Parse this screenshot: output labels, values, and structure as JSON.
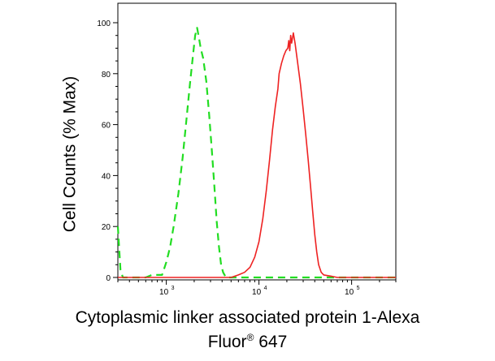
{
  "chart_data": {
    "type": "line",
    "ylabel": "Cell Counts (% Max)",
    "xlabel_line1": "Cytoplasmic linker associated protein 1-Alexa",
    "xlabel_line2": "Fluor",
    "xlabel_sup": "®",
    "xlabel_line2_tail": " 647",
    "x_scale": "log",
    "xlim": [
      300,
      300000
    ],
    "ylim": [
      0,
      100
    ],
    "y_ticks": [
      0,
      20,
      40,
      60,
      80,
      100
    ],
    "y_tick_labels": [
      "0",
      "20",
      "40",
      "60",
      "80",
      "100"
    ],
    "x_major_ticks": [
      1000,
      10000,
      100000
    ],
    "x_tick_labels": [
      {
        "base": "10",
        "exp": "3"
      },
      {
        "base": "10",
        "exp": "4"
      },
      {
        "base": "10",
        "exp": "5"
      }
    ],
    "grid": false,
    "legend": false,
    "series": [
      {
        "color": "#22dd22",
        "dash": "dashed",
        "points": [
          [
            300,
            20
          ],
          [
            320,
            3
          ],
          [
            340,
            0
          ],
          [
            600,
            0
          ],
          [
            700,
            1
          ],
          [
            800,
            1
          ],
          [
            900,
            1
          ],
          [
            1000,
            6
          ],
          [
            1100,
            12
          ],
          [
            1200,
            20
          ],
          [
            1350,
            33
          ],
          [
            1500,
            47
          ],
          [
            1650,
            62
          ],
          [
            1800,
            76
          ],
          [
            1950,
            88
          ],
          [
            2050,
            95
          ],
          [
            2150,
            98
          ],
          [
            2250,
            94
          ],
          [
            2350,
            90
          ],
          [
            2500,
            86
          ],
          [
            2700,
            77
          ],
          [
            2900,
            64
          ],
          [
            3100,
            50
          ],
          [
            3300,
            36
          ],
          [
            3500,
            22
          ],
          [
            3700,
            12
          ],
          [
            3900,
            5
          ],
          [
            4100,
            2
          ],
          [
            4400,
            0
          ],
          [
            300000,
            0
          ]
        ]
      },
      {
        "color": "#ee2222",
        "dash": "solid",
        "points": [
          [
            300,
            0
          ],
          [
            5000,
            0
          ],
          [
            6000,
            1
          ],
          [
            7000,
            2
          ],
          [
            8000,
            4
          ],
          [
            9000,
            8
          ],
          [
            10000,
            14
          ],
          [
            11000,
            23
          ],
          [
            12000,
            34
          ],
          [
            13000,
            46
          ],
          [
            14000,
            58
          ],
          [
            15000,
            67
          ],
          [
            16000,
            74
          ],
          [
            16500,
            80
          ],
          [
            17500,
            84
          ],
          [
            18500,
            87
          ],
          [
            19500,
            89
          ],
          [
            20500,
            90
          ],
          [
            21000,
            93
          ],
          [
            21500,
            89
          ],
          [
            22000,
            95
          ],
          [
            22500,
            92
          ],
          [
            23500,
            96
          ],
          [
            24500,
            92
          ],
          [
            26000,
            85
          ],
          [
            28000,
            76
          ],
          [
            30000,
            66
          ],
          [
            32000,
            56
          ],
          [
            34000,
            46
          ],
          [
            36000,
            36
          ],
          [
            38000,
            26
          ],
          [
            40000,
            17
          ],
          [
            42000,
            10
          ],
          [
            44000,
            5
          ],
          [
            47000,
            2
          ],
          [
            50000,
            1
          ],
          [
            60000,
            0.5
          ],
          [
            70000,
            0
          ],
          [
            300000,
            0
          ]
        ]
      }
    ]
  }
}
